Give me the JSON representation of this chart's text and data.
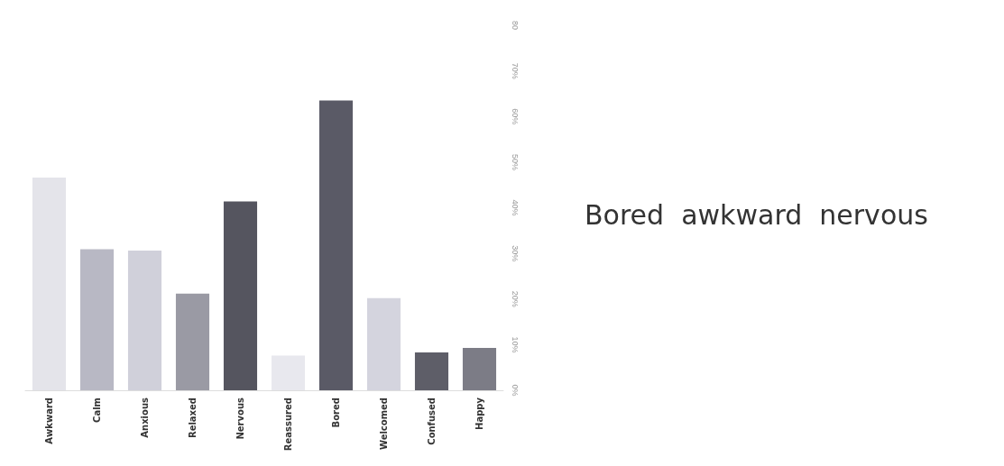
{
  "chart_data": {
    "type": "bar",
    "categories": [
      "Awkward",
      "Calm",
      "Anxious",
      "Relaxed",
      "Nervous",
      "Reassured",
      "Bored",
      "Welcomed",
      "Confused",
      "Happy"
    ],
    "values": [
      46.6,
      30.9,
      30.6,
      21.2,
      41.4,
      7.6,
      63.5,
      20.2,
      8.3,
      9.3
    ],
    "colors": [
      "#e4e4ea",
      "#b8b8c4",
      "#d0d0da",
      "#9a9aa4",
      "#55555f",
      "#e8e8ee",
      "#5a5a66",
      "#d4d4de",
      "#5e5e68",
      "#7c7c86"
    ],
    "ylim": [
      0,
      80
    ],
    "yticks": [
      {
        "value": 0,
        "label": "0%"
      },
      {
        "value": 10,
        "label": "10%"
      },
      {
        "value": 20,
        "label": "20%"
      },
      {
        "value": 30,
        "label": "30%"
      },
      {
        "value": 40,
        "label": "40%"
      },
      {
        "value": 50,
        "label": "50%"
      },
      {
        "value": 60,
        "label": "60%"
      },
      {
        "value": 70,
        "label": "70%"
      },
      {
        "value": 80,
        "label": "80"
      }
    ],
    "grid": false,
    "annotations": [
      "Bored  awkward  nervous"
    ]
  }
}
